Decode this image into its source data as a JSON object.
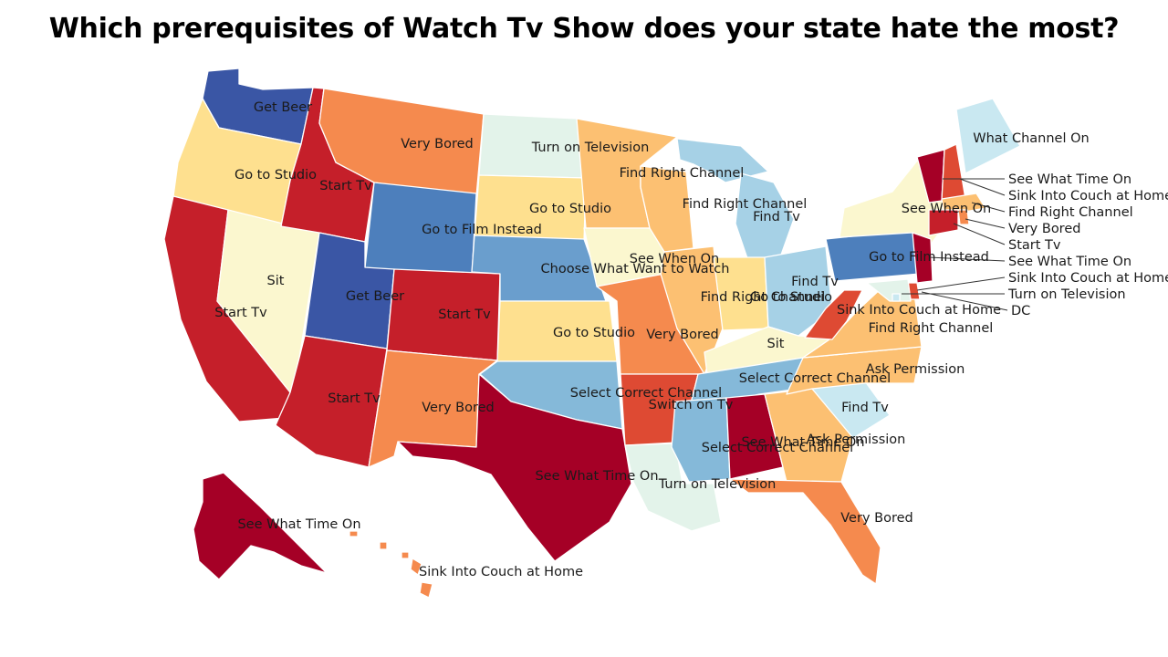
{
  "title": "Which prerequisites of Watch Tv Show does your state hate the most?",
  "colors": {
    "deep_red": "#a50026",
    "red": "#c51f2a",
    "red_orange": "#de4a33",
    "orange": "#f58a4e",
    "light_orange": "#fcc072",
    "tan": "#fee08f",
    "pale_yellow": "#fbf7cf",
    "mint": "#e3f3ea",
    "light_blue": "#c9e8f1",
    "sky_blue": "#a6d1e6",
    "mid_blue": "#85b9d9",
    "blue": "#6a9ecd",
    "steel_blue": "#4d7fbc",
    "dark_blue": "#3a56a5",
    "leader_line": "#333333"
  },
  "states": [
    {
      "id": "WA",
      "label": "Get Beer",
      "color_key": "dark_blue"
    },
    {
      "id": "OR",
      "label": "Go to Studio",
      "color_key": "tan"
    },
    {
      "id": "CA",
      "label": "Start Tv",
      "color_key": "red"
    },
    {
      "id": "NV",
      "label": "Sit",
      "color_key": "pale_yellow"
    },
    {
      "id": "ID",
      "label": "Start Tv",
      "color_key": "red"
    },
    {
      "id": "MT",
      "label": "Very Bored",
      "color_key": "orange"
    },
    {
      "id": "WY",
      "label": "Go to Film Instead",
      "color_key": "steel_blue"
    },
    {
      "id": "UT",
      "label": "Get Beer",
      "color_key": "dark_blue"
    },
    {
      "id": "AZ",
      "label": "Start Tv",
      "color_key": "red"
    },
    {
      "id": "CO",
      "label": "Start Tv",
      "color_key": "red"
    },
    {
      "id": "NM",
      "label": "Very Bored",
      "color_key": "orange"
    },
    {
      "id": "ND",
      "label": "Turn on Television",
      "color_key": "mint"
    },
    {
      "id": "SD",
      "label": "Go to Studio",
      "color_key": "tan"
    },
    {
      "id": "NE",
      "label": "Choose What Want to Watch",
      "color_key": "blue"
    },
    {
      "id": "KS",
      "label": "Go to Studio",
      "color_key": "tan"
    },
    {
      "id": "OK",
      "label": "Select Correct Channel",
      "color_key": "mid_blue"
    },
    {
      "id": "TX",
      "label": "See What Time On",
      "color_key": "deep_red"
    },
    {
      "id": "MN",
      "label": "Find Right Channel",
      "color_key": "light_orange"
    },
    {
      "id": "IA",
      "label": "See When On",
      "color_key": "pale_yellow"
    },
    {
      "id": "MO",
      "label": "Very Bored",
      "color_key": "orange"
    },
    {
      "id": "AR",
      "label": "Switch on Tv",
      "color_key": "red_orange"
    },
    {
      "id": "LA",
      "label": "Turn on Television",
      "color_key": "mint"
    },
    {
      "id": "WI",
      "label": "Find Right Channel",
      "color_key": "light_orange"
    },
    {
      "id": "IL",
      "label": "Find Right Channel",
      "color_key": "light_orange"
    },
    {
      "id": "MI",
      "label": "Find Tv",
      "color_key": "sky_blue"
    },
    {
      "id": "IN",
      "label": "Go to Studio",
      "color_key": "tan"
    },
    {
      "id": "OH",
      "label": "Find Tv",
      "color_key": "sky_blue"
    },
    {
      "id": "KY",
      "label": "Sit",
      "color_key": "pale_yellow"
    },
    {
      "id": "TN",
      "label": "Select Correct Channel",
      "color_key": "mid_blue"
    },
    {
      "id": "MS",
      "label": "Select Correct Channel",
      "color_key": "mid_blue"
    },
    {
      "id": "AL",
      "label": "See What Time On",
      "color_key": "deep_red"
    },
    {
      "id": "GA",
      "label": "Ask Permission",
      "color_key": "light_orange"
    },
    {
      "id": "FL",
      "label": "Very Bored",
      "color_key": "orange"
    },
    {
      "id": "SC",
      "label": "Find Tv",
      "color_key": "light_blue"
    },
    {
      "id": "NC",
      "label": "Ask Permission",
      "color_key": "light_orange"
    },
    {
      "id": "VA",
      "label": "Find Right Channel",
      "color_key": "light_orange"
    },
    {
      "id": "WV",
      "label": "Sink Into Couch at Home",
      "color_key": "red_orange"
    },
    {
      "id": "PA",
      "label": "Go to Film Instead",
      "color_key": "steel_blue"
    },
    {
      "id": "NY",
      "label": "See When On",
      "color_key": "pale_yellow"
    },
    {
      "id": "ME",
      "label": "What Channel On",
      "color_key": "light_blue"
    },
    {
      "id": "VT",
      "label": "See What Time On",
      "color_key": "deep_red"
    },
    {
      "id": "NH",
      "label": "Sink Into Couch at Home",
      "color_key": "red_orange"
    },
    {
      "id": "MA",
      "label": "Find Right Channel",
      "color_key": "light_orange"
    },
    {
      "id": "RI",
      "label": "Very Bored",
      "color_key": "orange"
    },
    {
      "id": "CT",
      "label": "Start Tv",
      "color_key": "red"
    },
    {
      "id": "NJ",
      "label": "See What Time On",
      "color_key": "deep_red"
    },
    {
      "id": "DE",
      "label": "Sink Into Couch at Home",
      "color_key": "red_orange"
    },
    {
      "id": "MD",
      "label": "Turn on Television",
      "color_key": "mint"
    },
    {
      "id": "DC",
      "label": "DC",
      "color_key": "light_blue"
    },
    {
      "id": "AK",
      "label": "See What Time On",
      "color_key": "deep_red"
    },
    {
      "id": "HI",
      "label": "Sink Into Couch at Home",
      "color_key": "orange"
    }
  ]
}
